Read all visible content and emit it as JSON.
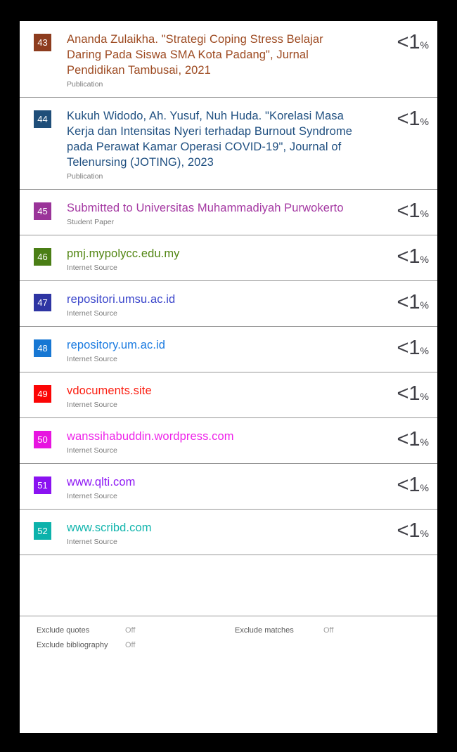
{
  "page": {
    "frame_color": "#000000",
    "paper_color": "#ffffff",
    "divider_color": "#979797",
    "percent_color": "#3f3f46"
  },
  "sources": [
    {
      "number": "43",
      "title": "Ananda Zulaikha. \"Strategi Coping Stress Belajar Daring Pada Siswa SMA Kota Padang\", Jurnal Pendidikan Tambusai, 2021",
      "type_label": "Publication",
      "badge_color": "#8d3c1e",
      "text_color": "#9d4a21",
      "percent": "<1",
      "percent_unit": "%"
    },
    {
      "number": "44",
      "title": "Kukuh Widodo, Ah. Yusuf, Nuh Huda. \"Korelasi Masa Kerja dan Intensitas Nyeri terhadap Burnout Syndrome pada Perawat Kamar Operasi COVID-19\", Journal of Telenursing (JOTING), 2023",
      "type_label": "Publication",
      "badge_color": "#1f4e79",
      "text_color": "#205081",
      "percent": "<1",
      "percent_unit": "%"
    },
    {
      "number": "45",
      "title": "Submitted to Universitas Muhammadiyah Purwokerto",
      "type_label": "Student Paper",
      "badge_color": "#9a3499",
      "text_color": "#a438a2",
      "percent": "<1",
      "percent_unit": "%"
    },
    {
      "number": "46",
      "title": "pmj.mypolycc.edu.my",
      "type_label": "Internet Source",
      "badge_color": "#4a7e15",
      "text_color": "#518511",
      "percent": "<1",
      "percent_unit": "%"
    },
    {
      "number": "47",
      "title": "repositori.umsu.ac.id",
      "type_label": "Internet Source",
      "badge_color": "#2e35a3",
      "text_color": "#3a45cb",
      "percent": "<1",
      "percent_unit": "%"
    },
    {
      "number": "48",
      "title": "repository.um.ac.id",
      "type_label": "Internet Source",
      "badge_color": "#1777d3",
      "text_color": "#1779e0",
      "percent": "<1",
      "percent_unit": "%"
    },
    {
      "number": "49",
      "title": "vdocuments.site",
      "type_label": "Internet Source",
      "badge_color": "#fb0505",
      "text_color": "#fb1e11",
      "percent": "<1",
      "percent_unit": "%"
    },
    {
      "number": "50",
      "title": "wanssihabuddin.wordpress.com",
      "type_label": "Internet Source",
      "badge_color": "#e714e0",
      "text_color": "#ee22e9",
      "percent": "<1",
      "percent_unit": "%"
    },
    {
      "number": "51",
      "title": "www.qlti.com",
      "type_label": "Internet Source",
      "badge_color": "#8a12f1",
      "text_color": "#8d16f4",
      "percent": "<1",
      "percent_unit": "%"
    },
    {
      "number": "52",
      "title": "www.scribd.com",
      "type_label": "Internet Source",
      "badge_color": "#0cb2ab",
      "text_color": "#12b5ad",
      "percent": "<1",
      "percent_unit": "%"
    }
  ],
  "footer": {
    "settings": [
      {
        "label": "Exclude quotes",
        "value": "Off"
      },
      {
        "label": "Exclude bibliography",
        "value": "Off"
      },
      {
        "label": "Exclude matches",
        "value": "Off"
      }
    ]
  }
}
